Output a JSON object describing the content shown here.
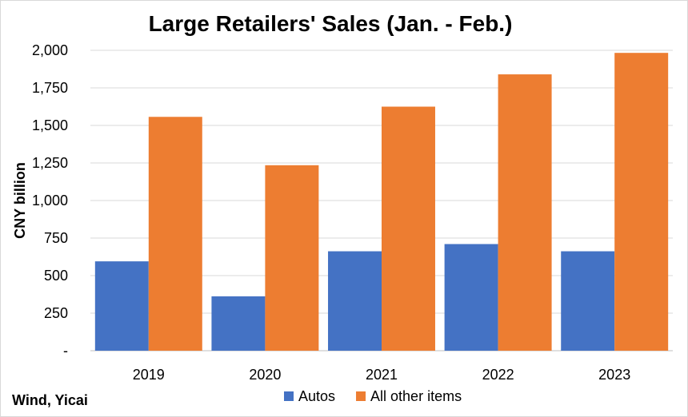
{
  "chart_data": {
    "type": "bar",
    "title": "Large Retailers' Sales (Jan. - Feb.)",
    "ylabel": "CNY billion",
    "xlabel": "",
    "categories": [
      "2019",
      "2020",
      "2021",
      "2022",
      "2023"
    ],
    "series": [
      {
        "name": "Autos",
        "color": "#4472c4",
        "values": [
          595,
          362,
          662,
          710,
          662
        ]
      },
      {
        "name": "All other items",
        "color": "#ed7d31",
        "values": [
          1557,
          1235,
          1625,
          1840,
          1983
        ]
      }
    ],
    "ylim": [
      0,
      2000
    ],
    "yticks": [
      0,
      250,
      500,
      750,
      1000,
      1250,
      1500,
      1750,
      2000
    ],
    "ytick_labels": [
      "-",
      "250",
      "500",
      "750",
      "1,000",
      "1,250",
      "1,500",
      "1,750",
      "2,000"
    ],
    "grid": true,
    "legend_position": "bottom",
    "source": "Wind, Yicai"
  }
}
